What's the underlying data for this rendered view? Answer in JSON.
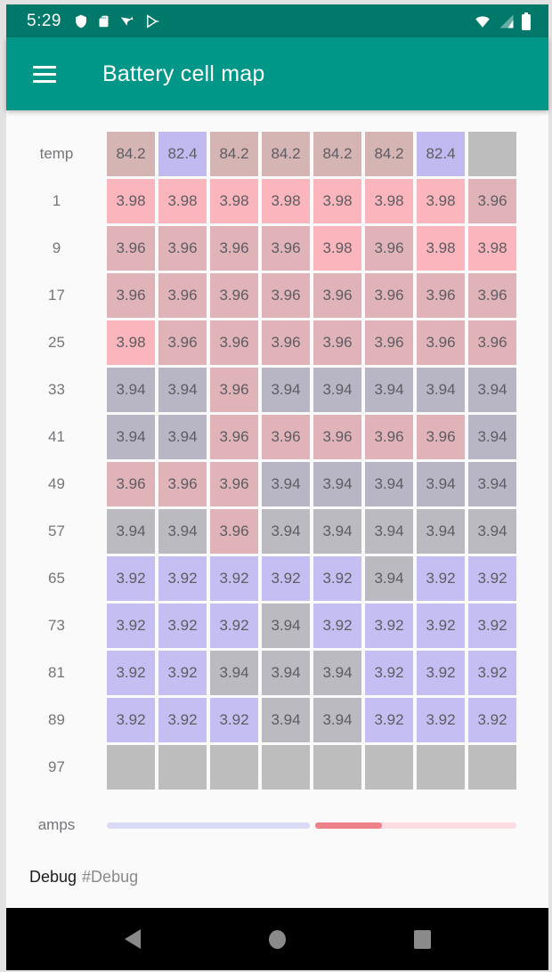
{
  "status_bar": {
    "time": "5:29",
    "left_icons": [
      "shield-icon",
      "sd-card-icon",
      "play-protect-icon",
      "play-store-icon"
    ],
    "right_icons": [
      "wifi-icon",
      "cell-signal-icon",
      "battery-icon"
    ]
  },
  "app_bar": {
    "title": "Battery cell map"
  },
  "colors": {
    "status_bar_bg": "#00796B",
    "app_bar_bg": "#009688",
    "content_bg": "#FAFAFA",
    "nav_bar_bg": "#000000",
    "nav_icon": "#8A8A8A",
    "cell_text": "#5E5C62",
    "label_text": "#76747A"
  },
  "palette": {
    "mauve": "#D5B4B4",
    "periwinkle": "#C0BAF0",
    "pink": "#FBB5BC",
    "rose": "#DFB3B8",
    "bluegray": "#B8B6C4",
    "gray": "#BCBAC1",
    "purple": "#C4BEF3",
    "empty": "#BDBDBD"
  },
  "grid": {
    "rows": [
      {
        "label": "temp",
        "cells": [
          {
            "v": "84.2",
            "c": "mauve"
          },
          {
            "v": "82.4",
            "c": "periwinkle"
          },
          {
            "v": "84.2",
            "c": "mauve"
          },
          {
            "v": "84.2",
            "c": "mauve"
          },
          {
            "v": "84.2",
            "c": "mauve"
          },
          {
            "v": "84.2",
            "c": "mauve"
          },
          {
            "v": "82.4",
            "c": "periwinkle"
          },
          {
            "v": "",
            "c": "empty"
          }
        ]
      },
      {
        "label": "1",
        "cells": [
          {
            "v": "3.98",
            "c": "pink"
          },
          {
            "v": "3.98",
            "c": "pink"
          },
          {
            "v": "3.98",
            "c": "pink"
          },
          {
            "v": "3.98",
            "c": "pink"
          },
          {
            "v": "3.98",
            "c": "pink"
          },
          {
            "v": "3.98",
            "c": "pink"
          },
          {
            "v": "3.98",
            "c": "pink"
          },
          {
            "v": "3.96",
            "c": "rose"
          }
        ]
      },
      {
        "label": "9",
        "cells": [
          {
            "v": "3.96",
            "c": "rose"
          },
          {
            "v": "3.96",
            "c": "rose"
          },
          {
            "v": "3.96",
            "c": "rose"
          },
          {
            "v": "3.96",
            "c": "rose"
          },
          {
            "v": "3.98",
            "c": "pink"
          },
          {
            "v": "3.96",
            "c": "rose"
          },
          {
            "v": "3.98",
            "c": "pink"
          },
          {
            "v": "3.98",
            "c": "pink"
          }
        ]
      },
      {
        "label": "17",
        "cells": [
          {
            "v": "3.96",
            "c": "rose"
          },
          {
            "v": "3.96",
            "c": "rose"
          },
          {
            "v": "3.96",
            "c": "rose"
          },
          {
            "v": "3.96",
            "c": "rose"
          },
          {
            "v": "3.96",
            "c": "rose"
          },
          {
            "v": "3.96",
            "c": "rose"
          },
          {
            "v": "3.96",
            "c": "rose"
          },
          {
            "v": "3.96",
            "c": "rose"
          }
        ]
      },
      {
        "label": "25",
        "cells": [
          {
            "v": "3.98",
            "c": "pink"
          },
          {
            "v": "3.96",
            "c": "rose"
          },
          {
            "v": "3.96",
            "c": "rose"
          },
          {
            "v": "3.96",
            "c": "rose"
          },
          {
            "v": "3.96",
            "c": "rose"
          },
          {
            "v": "3.96",
            "c": "rose"
          },
          {
            "v": "3.96",
            "c": "rose"
          },
          {
            "v": "3.96",
            "c": "rose"
          }
        ]
      },
      {
        "label": "33",
        "cells": [
          {
            "v": "3.94",
            "c": "bluegray"
          },
          {
            "v": "3.94",
            "c": "bluegray"
          },
          {
            "v": "3.96",
            "c": "rose"
          },
          {
            "v": "3.94",
            "c": "bluegray"
          },
          {
            "v": "3.94",
            "c": "bluegray"
          },
          {
            "v": "3.94",
            "c": "bluegray"
          },
          {
            "v": "3.94",
            "c": "bluegray"
          },
          {
            "v": "3.94",
            "c": "bluegray"
          }
        ]
      },
      {
        "label": "41",
        "cells": [
          {
            "v": "3.94",
            "c": "bluegray"
          },
          {
            "v": "3.94",
            "c": "bluegray"
          },
          {
            "v": "3.96",
            "c": "rose"
          },
          {
            "v": "3.96",
            "c": "rose"
          },
          {
            "v": "3.96",
            "c": "rose"
          },
          {
            "v": "3.96",
            "c": "rose"
          },
          {
            "v": "3.96",
            "c": "rose"
          },
          {
            "v": "3.94",
            "c": "bluegray"
          }
        ]
      },
      {
        "label": "49",
        "cells": [
          {
            "v": "3.96",
            "c": "rose"
          },
          {
            "v": "3.96",
            "c": "rose"
          },
          {
            "v": "3.96",
            "c": "rose"
          },
          {
            "v": "3.94",
            "c": "bluegray"
          },
          {
            "v": "3.94",
            "c": "bluegray"
          },
          {
            "v": "3.94",
            "c": "bluegray"
          },
          {
            "v": "3.94",
            "c": "bluegray"
          },
          {
            "v": "3.94",
            "c": "bluegray"
          }
        ]
      },
      {
        "label": "57",
        "cells": [
          {
            "v": "3.94",
            "c": "gray"
          },
          {
            "v": "3.94",
            "c": "gray"
          },
          {
            "v": "3.96",
            "c": "rose"
          },
          {
            "v": "3.94",
            "c": "gray"
          },
          {
            "v": "3.94",
            "c": "gray"
          },
          {
            "v": "3.94",
            "c": "gray"
          },
          {
            "v": "3.94",
            "c": "gray"
          },
          {
            "v": "3.94",
            "c": "gray"
          }
        ]
      },
      {
        "label": "65",
        "cells": [
          {
            "v": "3.92",
            "c": "purple"
          },
          {
            "v": "3.92",
            "c": "purple"
          },
          {
            "v": "3.92",
            "c": "purple"
          },
          {
            "v": "3.92",
            "c": "purple"
          },
          {
            "v": "3.92",
            "c": "purple"
          },
          {
            "v": "3.94",
            "c": "gray"
          },
          {
            "v": "3.92",
            "c": "purple"
          },
          {
            "v": "3.92",
            "c": "purple"
          }
        ]
      },
      {
        "label": "73",
        "cells": [
          {
            "v": "3.92",
            "c": "purple"
          },
          {
            "v": "3.92",
            "c": "purple"
          },
          {
            "v": "3.92",
            "c": "purple"
          },
          {
            "v": "3.94",
            "c": "gray"
          },
          {
            "v": "3.92",
            "c": "purple"
          },
          {
            "v": "3.92",
            "c": "purple"
          },
          {
            "v": "3.92",
            "c": "purple"
          },
          {
            "v": "3.92",
            "c": "purple"
          }
        ]
      },
      {
        "label": "81",
        "cells": [
          {
            "v": "3.92",
            "c": "purple"
          },
          {
            "v": "3.92",
            "c": "purple"
          },
          {
            "v": "3.94",
            "c": "gray"
          },
          {
            "v": "3.94",
            "c": "gray"
          },
          {
            "v": "3.94",
            "c": "gray"
          },
          {
            "v": "3.92",
            "c": "purple"
          },
          {
            "v": "3.92",
            "c": "purple"
          },
          {
            "v": "3.92",
            "c": "purple"
          }
        ]
      },
      {
        "label": "89",
        "cells": [
          {
            "v": "3.92",
            "c": "purple"
          },
          {
            "v": "3.92",
            "c": "purple"
          },
          {
            "v": "3.92",
            "c": "purple"
          },
          {
            "v": "3.94",
            "c": "gray"
          },
          {
            "v": "3.94",
            "c": "gray"
          },
          {
            "v": "3.92",
            "c": "purple"
          },
          {
            "v": "3.92",
            "c": "purple"
          },
          {
            "v": "3.92",
            "c": "purple"
          }
        ]
      },
      {
        "label": "97",
        "cells": [
          {
            "v": "",
            "c": "empty"
          },
          {
            "v": "",
            "c": "empty"
          },
          {
            "v": "",
            "c": "empty"
          },
          {
            "v": "",
            "c": "empty"
          },
          {
            "v": "",
            "c": "empty"
          },
          {
            "v": "",
            "c": "empty"
          },
          {
            "v": "",
            "c": "empty"
          },
          {
            "v": "",
            "c": "empty"
          }
        ]
      }
    ]
  },
  "amps": {
    "label": "amps",
    "left_track_color": "#DBDAF6",
    "right_track_color": "#FBDCE0",
    "right_fill_color": "#EE828A",
    "right_fill_pct": 33
  },
  "debug": {
    "label": "Debug",
    "tag": "#Debug"
  },
  "nav_bar": {
    "buttons": [
      "back",
      "home",
      "recents"
    ]
  }
}
